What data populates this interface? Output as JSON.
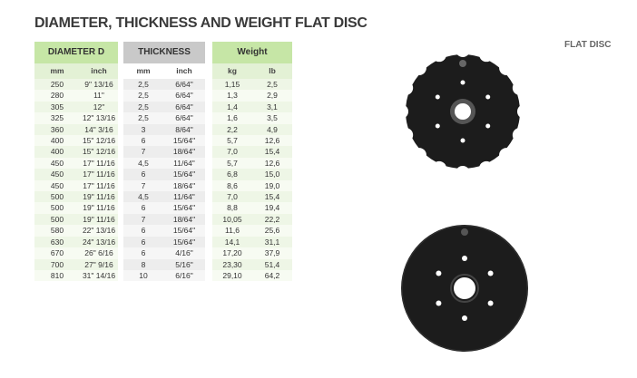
{
  "header": {
    "title": "DIAMETER, THICKNESS AND WEIGHT FLAT DISC"
  },
  "label": "FLAT DISC",
  "table": {
    "groups": [
      "DIAMETER D",
      "THICKNESS",
      "Weight"
    ],
    "subheaders": [
      "mm",
      "inch",
      "mm",
      "inch",
      "kg",
      "lb"
    ],
    "rows": [
      [
        "250",
        "9\" 13/16",
        "2,5",
        "6/64\"",
        "1,15",
        "2,5"
      ],
      [
        "280",
        "11\"",
        "2,5",
        "6/64\"",
        "1,3",
        "2,9"
      ],
      [
        "305",
        "12\"",
        "2,5",
        "6/64\"",
        "1,4",
        "3,1"
      ],
      [
        "325",
        "12\" 13/16",
        "2,5",
        "6/64\"",
        "1,6",
        "3,5"
      ],
      [
        "360",
        "14\" 3/16",
        "3",
        "8/64\"",
        "2,2",
        "4,9"
      ],
      [
        "400",
        "15\" 12/16",
        "6",
        "15/64\"",
        "5,7",
        "12,6"
      ],
      [
        "400",
        "15\" 12/16",
        "7",
        "18/64\"",
        "7,0",
        "15,4"
      ],
      [
        "450",
        "17\" 11/16",
        "4,5",
        "11/64\"",
        "5,7",
        "12,6"
      ],
      [
        "450",
        "17\" 11/16",
        "6",
        "15/64\"",
        "6,8",
        "15,0"
      ],
      [
        "450",
        "17\" 11/16",
        "7",
        "18/64\"",
        "8,6",
        "19,0"
      ],
      [
        "500",
        "19\" 11/16",
        "4,5",
        "11/64\"",
        "7,0",
        "15,4"
      ],
      [
        "500",
        "19\" 11/16",
        "6",
        "15/64\"",
        "8,8",
        "19,4"
      ],
      [
        "500",
        "19\" 11/16",
        "7",
        "18/64\"",
        "10,05",
        "22,2"
      ],
      [
        "580",
        "22\" 13/16",
        "6",
        "15/64\"",
        "11,6",
        "25,6"
      ],
      [
        "630",
        "24\" 13/16",
        "6",
        "15/64\"",
        "14,1",
        "31,1"
      ],
      [
        "670",
        "26\" 6/16",
        "6",
        "4/16\"",
        "17,20",
        "37,9"
      ],
      [
        "700",
        "27\" 9/16",
        "8",
        "5/16\"",
        "23,30",
        "51,4"
      ],
      [
        "810",
        "31\" 14/16",
        "10",
        "6/16\"",
        "29,10",
        "64,2"
      ]
    ]
  }
}
